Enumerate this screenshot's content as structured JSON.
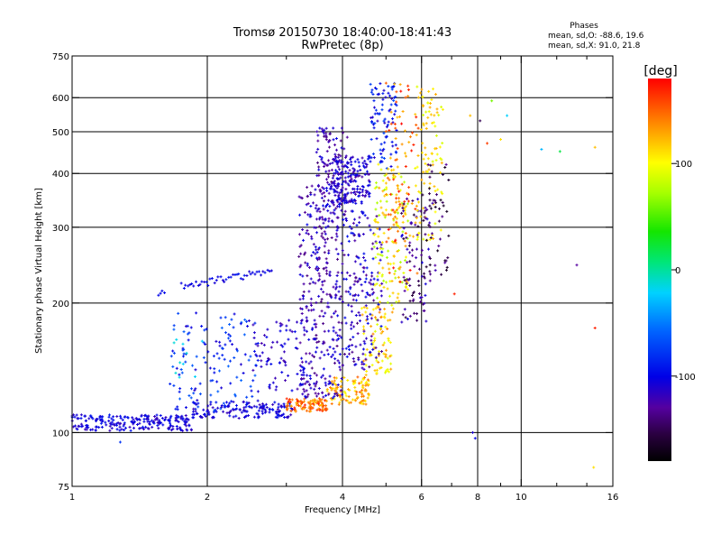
{
  "chart_data": {
    "type": "scatter",
    "title": "Tromsø 20150730 18:40:00-18:41:43",
    "subtitle": "RwPretec (8p)",
    "xlabel": "Frequency [MHz]",
    "ylabel": "Stationary phase Virtual Height [km]",
    "x_scale": "log",
    "y_scale": "log",
    "xlim": [
      1,
      16
    ],
    "ylim": [
      75,
      750
    ],
    "x_ticks": [
      1,
      2,
      4,
      6,
      8,
      10,
      16
    ],
    "x_tick_labels": [
      "1",
      "2",
      "4",
      "6",
      "8",
      "10",
      "16"
    ],
    "x_grid_lines": [
      2,
      4,
      6,
      8,
      10
    ],
    "x_minor_ticks": [
      3,
      5,
      7,
      9,
      12,
      14
    ],
    "y_ticks": [
      75,
      100,
      200,
      300,
      400,
      500,
      600,
      750
    ],
    "y_tick_labels": [
      "75",
      "100",
      "200",
      "300",
      "400",
      "500",
      "600",
      "750"
    ],
    "y_grid_lines": [
      100,
      200,
      300,
      400,
      500,
      600
    ],
    "grid": true,
    "colorbar": {
      "label": "[deg]",
      "min": -180,
      "max": 180,
      "ticks": [
        100,
        0,
        -100
      ],
      "tick_labels": [
        "100",
        "0",
        "-100"
      ]
    },
    "legend": {
      "heading": "Phases",
      "lines": [
        "mean, sd,O: -88.6, 19.6",
        "mean, sd,X:  91.0, 21.8"
      ]
    },
    "point_groups": [
      {
        "x_range": [
          1.0,
          1.85
        ],
        "y_range": [
          101,
          110
        ],
        "phase_range": [
          -120,
          -90
        ],
        "count": 220
      },
      {
        "x_range": [
          1.85,
          3.1
        ],
        "y_range": [
          108,
          118
        ],
        "phase_range": [
          -120,
          -90
        ],
        "count": 160
      },
      {
        "x_range": [
          3.0,
          3.7
        ],
        "y_range": [
          112,
          120
        ],
        "phase_range": [
          120,
          175
        ],
        "count": 100
      },
      {
        "x_range": [
          3.7,
          4.6
        ],
        "y_range": [
          116,
          135
        ],
        "phase_range": [
          95,
          150
        ],
        "count": 110
      },
      {
        "x_range": [
          4.4,
          5.2
        ],
        "y_range": [
          135,
          200
        ],
        "phase_range": [
          90,
          140
        ],
        "count": 90
      },
      {
        "x_range": [
          1.65,
          2.6
        ],
        "y_range": [
          112,
          190
        ],
        "phase_range": [
          -115,
          -60
        ],
        "count": 130
      },
      {
        "x_range": [
          2.5,
          3.4
        ],
        "y_range": [
          125,
          185
        ],
        "phase_range": [
          -125,
          -95
        ],
        "count": 80
      },
      {
        "x_range": [
          3.2,
          4.0
        ],
        "y_range": [
          120,
          380
        ],
        "phase_range": [
          -140,
          -100
        ],
        "count": 340
      },
      {
        "x_range": [
          3.5,
          4.1
        ],
        "y_range": [
          310,
          510
        ],
        "phase_range": [
          -140,
          -100
        ],
        "count": 130
      },
      {
        "x_range": [
          3.8,
          4.6
        ],
        "y_range": [
          340,
          440
        ],
        "phase_range": [
          -130,
          -95
        ],
        "count": 170
      },
      {
        "x_range": [
          4.0,
          4.9
        ],
        "y_range": [
          140,
          330
        ],
        "phase_range": [
          -140,
          -90
        ],
        "count": 180
      },
      {
        "x_range": [
          4.6,
          5.3
        ],
        "y_range": [
          400,
          650
        ],
        "phase_range": [
          -120,
          -70
        ],
        "count": 90
      },
      {
        "x_range": [
          4.7,
          5.6
        ],
        "y_range": [
          200,
          420
        ],
        "phase_range": [
          70,
          130
        ],
        "count": 140
      },
      {
        "x_range": [
          5.0,
          5.9
        ],
        "y_range": [
          220,
          650
        ],
        "phase_range": [
          115,
          180
        ],
        "count": 90
      },
      {
        "x_range": [
          5.4,
          6.3
        ],
        "y_range": [
          180,
          360
        ],
        "phase_range": [
          -160,
          -105
        ],
        "count": 90
      },
      {
        "x_range": [
          5.8,
          6.7
        ],
        "y_range": [
          280,
          640
        ],
        "phase_range": [
          85,
          130
        ],
        "count": 100
      },
      {
        "x_range": [
          6.1,
          6.9
        ],
        "y_range": [
          230,
          420
        ],
        "phase_range": [
          -170,
          -120
        ],
        "count": 50
      },
      {
        "x_range": [
          1.65,
          1.95
        ],
        "y_range": [
          130,
          165
        ],
        "phase_range": [
          -20,
          -10
        ],
        "count": 10
      }
    ],
    "segments": [
      {
        "x_range": [
          1.75,
          2.8
        ],
        "y_range": [
          218,
          238
        ],
        "phase_range": [
          -110,
          -90
        ],
        "count": 45
      },
      {
        "x_range": [
          1.55,
          1.62
        ],
        "y_range": [
          208,
          212
        ],
        "phase_range": [
          -100,
          -95
        ],
        "count": 4
      }
    ],
    "sparse_points": [
      {
        "x": 7.7,
        "y": 545,
        "phase": 120
      },
      {
        "x": 8.1,
        "y": 530,
        "phase": -150
      },
      {
        "x": 8.4,
        "y": 470,
        "phase": 160
      },
      {
        "x": 9.0,
        "y": 480,
        "phase": 110
      },
      {
        "x": 8.6,
        "y": 590,
        "phase": 60
      },
      {
        "x": 9.3,
        "y": 545,
        "phase": -20
      },
      {
        "x": 11.1,
        "y": 455,
        "phase": -30
      },
      {
        "x": 12.2,
        "y": 450,
        "phase": 20
      },
      {
        "x": 14.6,
        "y": 460,
        "phase": 120
      },
      {
        "x": 13.3,
        "y": 245,
        "phase": -130
      },
      {
        "x": 14.6,
        "y": 175,
        "phase": 170
      },
      {
        "x": 14.5,
        "y": 83,
        "phase": 110
      },
      {
        "x": 7.8,
        "y": 100,
        "phase": -110
      },
      {
        "x": 7.9,
        "y": 97,
        "phase": -100
      },
      {
        "x": 7.1,
        "y": 210,
        "phase": 170
      },
      {
        "x": 1.28,
        "y": 95,
        "phase": -80
      },
      {
        "x": 5.3,
        "y": 540,
        "phase": 120
      }
    ]
  }
}
